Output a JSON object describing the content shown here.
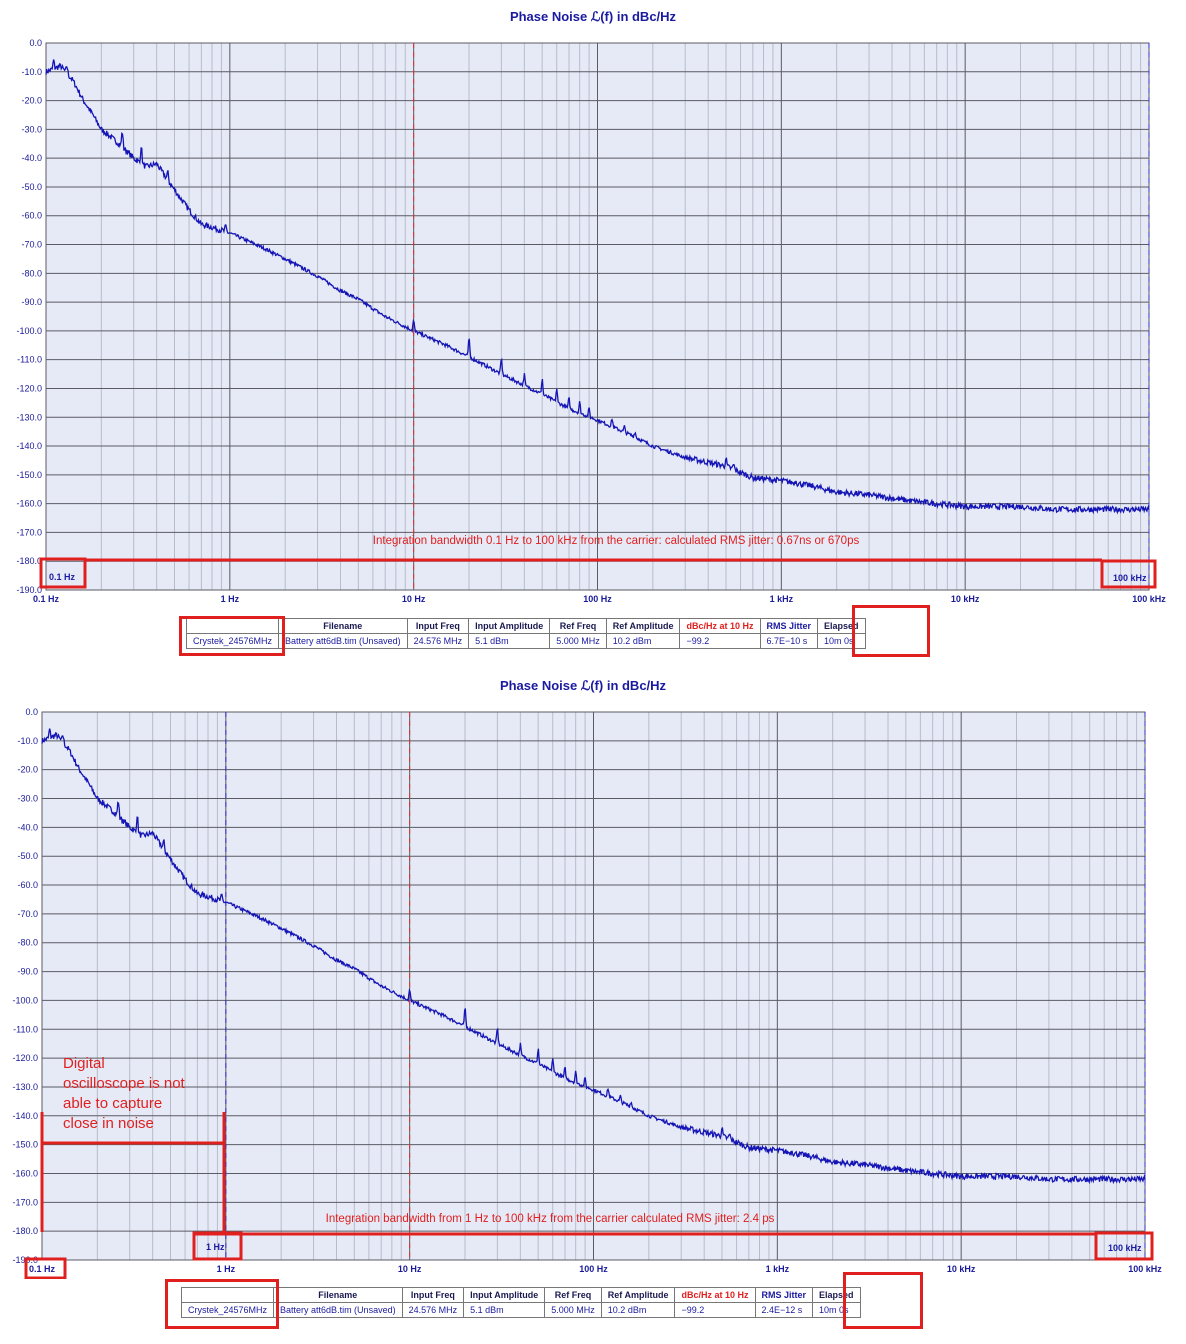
{
  "chart_data": [
    {
      "type": "line",
      "title": "Phase Noise ℒ(f) in dBc/Hz",
      "xscale": "log",
      "xlim": [
        0.1,
        100000
      ],
      "ylim": [
        -190,
        0
      ],
      "grid": true,
      "y_ticks": [
        "0.0",
        "-10.0",
        "-20.0",
        "-30.0",
        "-40.0",
        "-50.0",
        "-60.0",
        "-70.0",
        "-80.0",
        "-90.0",
        "-100.0",
        "-110.0",
        "-120.0",
        "-130.0",
        "-140.0",
        "-150.0",
        "-160.0",
        "-170.0",
        "-180.0",
        "-190.0"
      ],
      "x_ticks": [
        "0.1 Hz",
        "1 Hz",
        "10 Hz",
        "100 Hz",
        "1 kHz",
        "10 kHz",
        "100 kHz"
      ],
      "x": [
        0.1,
        0.12,
        0.14,
        0.16,
        0.18,
        0.2,
        0.25,
        0.3,
        0.35,
        0.4,
        0.5,
        0.6,
        0.7,
        0.8,
        1,
        1.5,
        2,
        3,
        4,
        5,
        7,
        10,
        15,
        20,
        30,
        50,
        70,
        100,
        150,
        200,
        300,
        500,
        700,
        1000,
        1500,
        2000,
        3000,
        5000,
        7000,
        10000,
        15000,
        20000,
        30000,
        50000,
        70000,
        100000
      ],
      "series": [
        {
          "color": "#1515b5",
          "values": [
            -10,
            -8,
            -13,
            -20,
            -25,
            -30,
            -35,
            -40,
            -43,
            -42,
            -51,
            -58,
            -63,
            -64,
            -66,
            -71,
            -75,
            -81,
            -86,
            -89,
            -95,
            -100,
            -105,
            -109,
            -115,
            -122,
            -127,
            -131,
            -136,
            -140,
            -144,
            -147,
            -151,
            -152,
            -154,
            -156,
            -157,
            -159,
            -160,
            -161,
            -161,
            -161,
            -162,
            -162,
            -162,
            -162
          ]
        }
      ],
      "annotations": {
        "integration": "Integration bandwidth 0.1 Hz to 100 kHz from the carrier: calculated RMS jitter: 0.67ns or 670ps",
        "marker_start": "0.1 Hz",
        "marker_end": "100 kHz"
      },
      "table": {
        "headers": [
          "",
          "Filename",
          "Input Freq",
          "Input Amplitude",
          "Ref Freq",
          "Ref Amplitude",
          "dBc/Hz at 10 Hz",
          "RMS Jitter",
          "Elapsed"
        ],
        "row": [
          "Crystek_24576MHz",
          "Battery att6dB.tim (Unsaved)",
          "24.576 MHz",
          "5.1 dBm",
          "5.000 MHz",
          "10.2 dBm",
          "−99.2",
          "6.7E−10 s",
          "10m 0s"
        ]
      }
    },
    {
      "type": "line",
      "title": "Phase Noise ℒ(f) in dBc/Hz",
      "xscale": "log",
      "xlim": [
        0.1,
        100000
      ],
      "ylim": [
        -190,
        0
      ],
      "grid": true,
      "y_ticks": [
        "0.0",
        "-10.0",
        "-20.0",
        "-30.0",
        "-40.0",
        "-50.0",
        "-60.0",
        "-70.0",
        "-80.0",
        "-90.0",
        "-100.0",
        "-110.0",
        "-120.0",
        "-130.0",
        "-140.0",
        "-150.0",
        "-160.0",
        "-170.0",
        "-180.0",
        "-190.0"
      ],
      "x_ticks": [
        "0.1 Hz",
        "1 Hz",
        "10 Hz",
        "100 Hz",
        "1 kHz",
        "10 kHz",
        "100 kHz"
      ],
      "x": [
        0.1,
        0.12,
        0.14,
        0.16,
        0.18,
        0.2,
        0.25,
        0.3,
        0.35,
        0.4,
        0.5,
        0.6,
        0.7,
        0.8,
        1,
        1.5,
        2,
        3,
        4,
        5,
        7,
        10,
        15,
        20,
        30,
        50,
        70,
        100,
        150,
        200,
        300,
        500,
        700,
        1000,
        1500,
        2000,
        3000,
        5000,
        7000,
        10000,
        15000,
        20000,
        30000,
        50000,
        70000,
        100000
      ],
      "series": [
        {
          "color": "#1515b5",
          "values": [
            -10,
            -8,
            -13,
            -20,
            -25,
            -30,
            -35,
            -40,
            -43,
            -42,
            -51,
            -58,
            -63,
            -64,
            -66,
            -71,
            -75,
            -81,
            -86,
            -89,
            -95,
            -100,
            -105,
            -109,
            -115,
            -122,
            -127,
            -131,
            -136,
            -140,
            -144,
            -147,
            -151,
            -152,
            -154,
            -156,
            -157,
            -159,
            -160,
            -161,
            -161,
            -161,
            -162,
            -162,
            -162,
            -162
          ]
        }
      ],
      "annotations": {
        "integration": "Integration bandwidth from 1 Hz to 100 kHz from the carrier calculated RMS jitter: 2.4 ps",
        "scope_note": [
          "Digital",
          "oscilloscope is not",
          "able to capture",
          "close in noise"
        ],
        "marker_start": "1 Hz",
        "marker_end": "100 kHz"
      },
      "table": {
        "headers": [
          "",
          "Filename",
          "Input Freq",
          "Input Amplitude",
          "Ref Freq",
          "Ref Amplitude",
          "dBc/Hz at 10 Hz",
          "RMS Jitter",
          "Elapsed"
        ],
        "row": [
          "Crystek_24576MHz",
          "Battery att6dB.tim (Unsaved)",
          "24.576 MHz",
          "5.1 dBm",
          "5.000 MHz",
          "10.2 dBm",
          "−99.2",
          "2.4E−12 s",
          "10m 0s"
        ]
      }
    }
  ]
}
